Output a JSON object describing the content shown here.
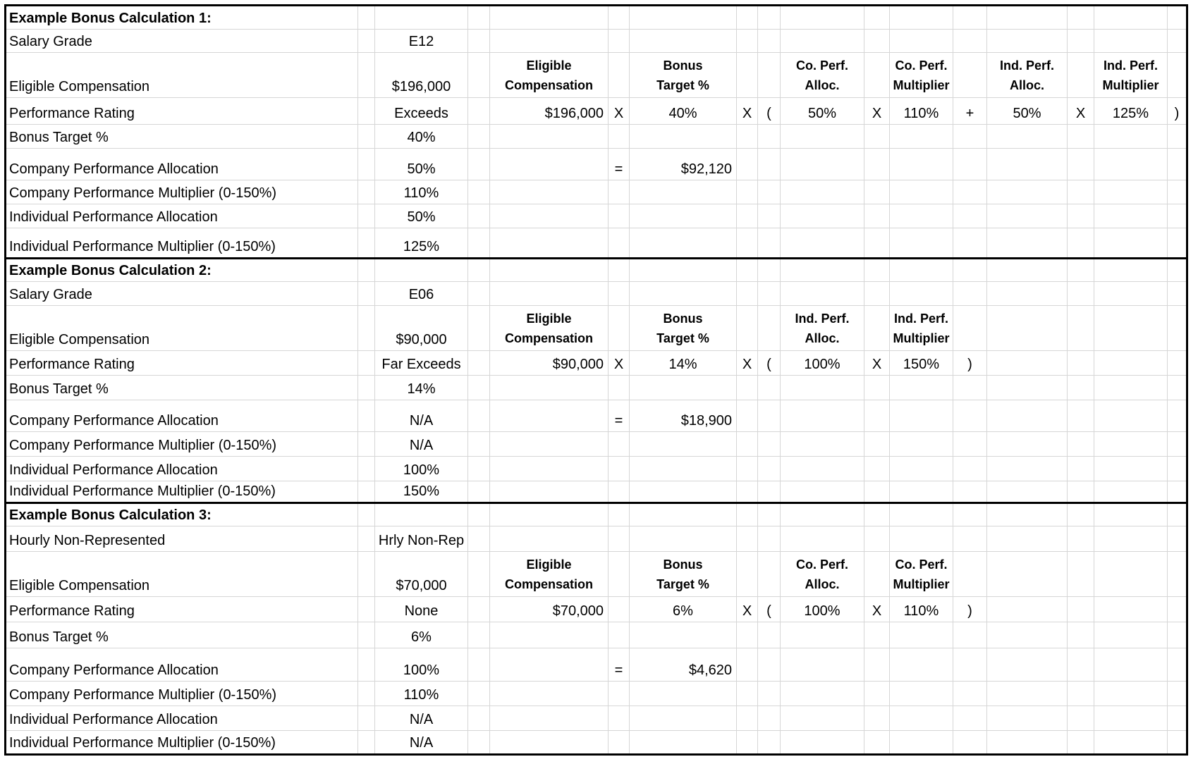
{
  "document": {
    "sections": [
      {
        "title": "Example Bonus Calculation 1:",
        "rows": [
          {
            "type": "title"
          },
          {
            "type": "kv",
            "label": "Salary Grade",
            "value": "E12"
          },
          {
            "type": "header",
            "label": "Eligible Compensation",
            "value": "$196,000",
            "headers": {
              "E": "Eligible\nCompensation",
              "G": "Bonus\nTarget %",
              "J": "Co. Perf.\nAlloc.",
              "L": "Co. Perf.\nMultiplier",
              "N": "Ind. Perf.\nAlloc.",
              "P": "Ind. Perf.\nMultiplier"
            }
          },
          {
            "type": "formula",
            "label": "Performance Rating",
            "value": "Exceeds",
            "cells": {
              "E": "$196,000",
              "F": "X",
              "G": "40%",
              "H": "X",
              "I": "(",
              "J": "50%",
              "K": "X",
              "L": "110%",
              "M": "+",
              "N": "50%",
              "O": "X",
              "P": "125%",
              "Q": ")"
            }
          },
          {
            "type": "kv",
            "label": "Bonus Target %",
            "value": "40%"
          },
          {
            "type": "result",
            "label": "Company Performance Allocation",
            "value": "50%",
            "cells": {
              "F": "=",
              "G": "$92,120"
            }
          },
          {
            "type": "kv",
            "label": "Company Performance Multiplier (0-150%)",
            "value": "110%"
          },
          {
            "type": "kv",
            "label": "Individual Performance Allocation",
            "value": "50%"
          },
          {
            "type": "kv",
            "label": "Individual Performance Multiplier (0-150%)",
            "value": "125%"
          }
        ]
      },
      {
        "title": "Example Bonus Calculation 2:",
        "rows": [
          {
            "type": "title"
          },
          {
            "type": "kv",
            "label": "Salary Grade",
            "value": "E06"
          },
          {
            "type": "header",
            "label": "Eligible Compensation",
            "value": "$90,000",
            "headers": {
              "E": "Eligible\nCompensation",
              "G": "Bonus\nTarget %",
              "J": "Ind. Perf.\nAlloc.",
              "L": "Ind. Perf.\nMultiplier"
            }
          },
          {
            "type": "formula",
            "label": "Performance Rating",
            "value": "Far Exceeds",
            "cells": {
              "E": "$90,000",
              "F": "X",
              "G": "14%",
              "H": "X",
              "I": "(",
              "J": "100%",
              "K": "X",
              "L": "150%",
              "M": ")"
            }
          },
          {
            "type": "kv",
            "label": "Bonus Target %",
            "value": "14%"
          },
          {
            "type": "result",
            "label": "Company Performance Allocation",
            "value": "N/A",
            "cells": {
              "F": "=",
              "G": "$18,900"
            }
          },
          {
            "type": "kv",
            "label": "Company Performance Multiplier (0-150%)",
            "value": "N/A"
          },
          {
            "type": "kv",
            "label": "Individual Performance Allocation",
            "value": "100%"
          },
          {
            "type": "kv",
            "label": "Individual Performance Multiplier (0-150%)",
            "value": "150%"
          }
        ]
      },
      {
        "title": "Example Bonus Calculation 3:",
        "rows": [
          {
            "type": "title"
          },
          {
            "type": "kv",
            "label": "Hourly Non-Represented",
            "value": "Hrly Non-Rep"
          },
          {
            "type": "header",
            "label": "Eligible Compensation",
            "value": "$70,000",
            "headers": {
              "E": "Eligible\nCompensation",
              "G": "Bonus\nTarget %",
              "J": "Co. Perf.\nAlloc.",
              "L": "Co. Perf.\nMultiplier"
            }
          },
          {
            "type": "formula",
            "label": "Performance Rating",
            "value": "None",
            "cells": {
              "E": "$70,000",
              "G": "6%",
              "H": "X",
              "I": "(",
              "J": "100%",
              "K": "X",
              "L": "110%",
              "M": ")"
            }
          },
          {
            "type": "kv",
            "label": "Bonus Target %",
            "value": "6%"
          },
          {
            "type": "result",
            "label": "Company Performance Allocation",
            "value": "100%",
            "cells": {
              "F": "=",
              "G": "$4,620"
            }
          },
          {
            "type": "kv",
            "label": "Company Performance Multiplier (0-150%)",
            "value": "110%"
          },
          {
            "type": "kv",
            "label": "Individual Performance Allocation",
            "value": "N/A"
          },
          {
            "type": "kv",
            "label": "Individual Performance Multiplier (0-150%)",
            "value": "N/A"
          }
        ]
      }
    ]
  }
}
